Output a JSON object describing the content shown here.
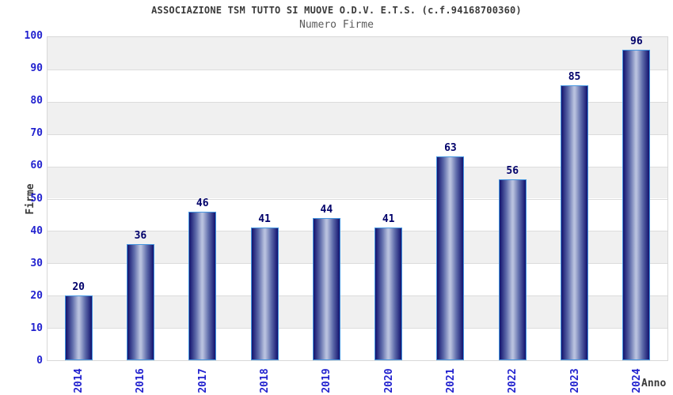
{
  "chart_data": {
    "type": "bar",
    "title": "ASSOCIAZIONE TSM TUTTO SI MUOVE O.D.V. E.T.S. (c.f.94168700360)",
    "subtitle": "Numero Firme",
    "xlabel": "Anno",
    "ylabel": "Firme",
    "categories": [
      "2014",
      "2016",
      "2017",
      "2018",
      "2019",
      "2020",
      "2021",
      "2022",
      "2023",
      "2024"
    ],
    "values": [
      20,
      36,
      46,
      41,
      44,
      41,
      63,
      56,
      85,
      96
    ],
    "ylim": [
      0,
      100
    ],
    "ytick_step": 10,
    "yticks": [
      0,
      10,
      20,
      30,
      40,
      50,
      60,
      70,
      80,
      90,
      100
    ],
    "grid": "horizontal-bands-alternating",
    "legend": "none",
    "x_tick_rotation_deg": -90,
    "colors": {
      "title": "#3a3a3a",
      "subtitle": "#5a5a5a",
      "axis_title": "#3a3a3a",
      "tick_label": "#2323cf",
      "value_label": "#00006a",
      "band_gray": "#f0f0f0",
      "grid_line": "#dcdcdc",
      "plot_border": "#d8d8d8",
      "bar_dark": "#12126e",
      "bar_mid": "#5f6cab",
      "bar_light": "#b8c1de",
      "bar_border": "#4596e0"
    }
  }
}
